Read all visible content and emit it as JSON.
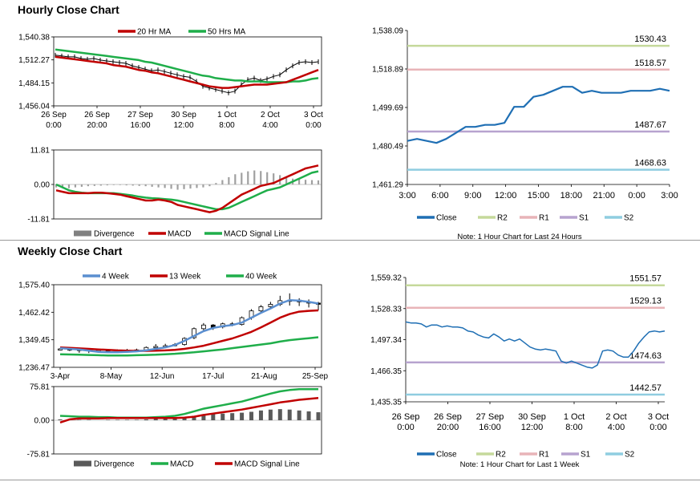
{
  "titles": {
    "hourly": "Hourly Close Chart",
    "weekly": "Weekly Close Chart"
  },
  "colors": {
    "ma_short": "#c00000",
    "ma_long": "#1fae4a",
    "ma_mid": "#5b8fd0",
    "close": "#1f6fb4",
    "r2": "#c5d99b",
    "r1": "#e8b4b8",
    "s1": "#b7a3cf",
    "s2": "#8fcde0",
    "divergence": "#a0a0a0",
    "weekly_divergence": "#5a5a5a"
  },
  "chart_data": [
    {
      "id": "hourly_price",
      "type": "line",
      "legend": [
        "20 Hr MA",
        "50 Hrs MA"
      ],
      "y_ticks": [
        "1,540.38",
        "1,512.27",
        "1,484.15",
        "1,456.04"
      ],
      "ylim": [
        1456.04,
        1540.38
      ],
      "x_ticks": [
        [
          "26 Sep",
          "0:00"
        ],
        [
          "26 Sep",
          "20:00"
        ],
        [
          "27 Sep",
          "16:00"
        ],
        [
          "30 Sep",
          "12:00"
        ],
        [
          "1 Oct",
          "8:00"
        ],
        [
          "2 Oct",
          "4:00"
        ],
        [
          "3 Oct",
          "0:00"
        ]
      ],
      "close": [
        1518,
        1517,
        1516,
        1516,
        1514,
        1513,
        1514,
        1512,
        1511,
        1510,
        1509,
        1508,
        1505,
        1503,
        1501,
        1499,
        1500,
        1498,
        1496,
        1494,
        1492,
        1491,
        1486,
        1480,
        1478,
        1476,
        1474,
        1472,
        1474,
        1482,
        1488,
        1490,
        1487,
        1489,
        1492,
        1494,
        1500,
        1505,
        1509,
        1510,
        1509,
        1510
      ],
      "ma20": [
        1516,
        1515,
        1514,
        1513,
        1512,
        1511,
        1510,
        1509,
        1508,
        1506,
        1505,
        1504,
        1502,
        1500,
        1499,
        1497,
        1496,
        1494,
        1492,
        1490,
        1488,
        1486,
        1484,
        1482,
        1480,
        1479,
        1478,
        1478,
        1479,
        1480,
        1481,
        1482,
        1482,
        1482,
        1483,
        1484,
        1485,
        1488,
        1491,
        1494,
        1497,
        1500
      ],
      "ma50": [
        1525,
        1524,
        1523,
        1522,
        1521,
        1520,
        1519,
        1518,
        1517,
        1516,
        1515,
        1514,
        1513,
        1512,
        1510,
        1509,
        1507,
        1505,
        1503,
        1501,
        1499,
        1497,
        1495,
        1493,
        1492,
        1490,
        1489,
        1488,
        1487,
        1487,
        1486,
        1486,
        1486,
        1485,
        1485,
        1485,
        1485,
        1486,
        1486,
        1487,
        1489,
        1490
      ]
    },
    {
      "id": "hourly_macd",
      "type": "bar+line",
      "legend": [
        "Divergence",
        "MACD",
        "MACD Signal Line"
      ],
      "y_ticks": [
        "11.81",
        "0.00",
        "-11.81"
      ],
      "ylim": [
        -11.81,
        11.81
      ],
      "divergence": [
        -1.0,
        -1.2,
        -1.3,
        -1.0,
        -0.8,
        -0.6,
        -0.5,
        -0.4,
        -0.3,
        -0.2,
        -0.2,
        -0.3,
        -0.4,
        -0.5,
        -0.6,
        -0.8,
        -1.0,
        -1.2,
        -1.5,
        -1.8,
        -1.6,
        -1.4,
        -1.2,
        -1.0,
        -0.6,
        0.5,
        1.5,
        2.5,
        3.5,
        4.0,
        4.5,
        4.8,
        4.6,
        4.2,
        3.8,
        3.2,
        2.6,
        2.0,
        1.8,
        1.6,
        1.5,
        1.4
      ],
      "macd": [
        -2.0,
        -2.5,
        -3.0,
        -3.0,
        -3.0,
        -3.0,
        -2.8,
        -2.8,
        -3.0,
        -3.2,
        -3.5,
        -4.0,
        -4.5,
        -5.0,
        -5.5,
        -5.5,
        -5.2,
        -5.5,
        -6.0,
        -7.0,
        -7.5,
        -8.0,
        -8.5,
        -9.0,
        -9.5,
        -9.0,
        -8.0,
        -6.5,
        -5.0,
        -3.5,
        -2.5,
        -1.5,
        -0.5,
        0.0,
        0.5,
        1.5,
        2.5,
        3.5,
        4.5,
        5.5,
        6.0,
        6.5
      ],
      "signal": [
        0.0,
        -1.0,
        -2.0,
        -2.5,
        -2.8,
        -3.0,
        -3.0,
        -3.0,
        -3.0,
        -3.0,
        -3.2,
        -3.5,
        -3.8,
        -4.2,
        -4.5,
        -4.7,
        -4.8,
        -5.0,
        -5.2,
        -5.5,
        -6.0,
        -6.5,
        -7.0,
        -7.5,
        -8.0,
        -8.5,
        -8.5,
        -8.0,
        -7.0,
        -6.0,
        -5.0,
        -4.0,
        -3.0,
        -2.0,
        -1.5,
        -1.0,
        0.0,
        1.0,
        2.0,
        3.0,
        4.0,
        4.5
      ]
    },
    {
      "id": "hourly_levels",
      "type": "line",
      "legend": [
        "Close",
        "R2",
        "R1",
        "S1",
        "S2"
      ],
      "note": "Note: 1 Hour Chart for Last 24 Hours",
      "y_ticks": [
        "1,538.09",
        "1,518.89",
        "1,499.69",
        "1,480.49",
        "1,461.29"
      ],
      "ylim": [
        1461.29,
        1538.09
      ],
      "x_ticks": [
        "3:00",
        "6:00",
        "9:00",
        "12:00",
        "15:00",
        "18:00",
        "21:00",
        "0:00",
        "3:00"
      ],
      "levels": {
        "r2": "1530.43",
        "r1": "1518.57",
        "s1": "1487.67",
        "s2": "1468.63"
      },
      "close": [
        1483,
        1484,
        1483,
        1482,
        1484,
        1487,
        1490,
        1490,
        1491,
        1491,
        1492,
        1500,
        1500,
        1505,
        1506,
        1508,
        1510,
        1510,
        1507,
        1508,
        1507,
        1507,
        1507,
        1508,
        1508,
        1508,
        1509,
        1508
      ]
    },
    {
      "id": "weekly_price",
      "type": "candlestick+line",
      "legend": [
        "4 Week",
        "13 Week",
        "40 Week"
      ],
      "y_ticks": [
        "1,575.40",
        "1,462.42",
        "1,349.45",
        "1,236.47"
      ],
      "ylim": [
        1236.47,
        1575.4
      ],
      "x_ticks": [
        "3-Apr",
        "8-May",
        "12-Jun",
        "17-Jul",
        "21-Aug",
        "25-Sep"
      ],
      "candles": [
        [
          1310,
          1312,
          1316,
          1305
        ],
        [
          1312,
          1310,
          1318,
          1303
        ],
        [
          1310,
          1309,
          1314,
          1296
        ],
        [
          1309,
          1305,
          1313,
          1295
        ],
        [
          1305,
          1306,
          1312,
          1298
        ],
        [
          1306,
          1303,
          1310,
          1298
        ],
        [
          1303,
          1306,
          1310,
          1299
        ],
        [
          1306,
          1305,
          1312,
          1300
        ],
        [
          1305,
          1308,
          1313,
          1301
        ],
        [
          1308,
          1318,
          1322,
          1305
        ],
        [
          1318,
          1322,
          1332,
          1312
        ],
        [
          1322,
          1325,
          1333,
          1318
        ],
        [
          1325,
          1330,
          1336,
          1322
        ],
        [
          1330,
          1355,
          1360,
          1325
        ],
        [
          1358,
          1395,
          1400,
          1352
        ],
        [
          1395,
          1410,
          1418,
          1388
        ],
        [
          1410,
          1400,
          1414,
          1390
        ],
        [
          1402,
          1415,
          1420,
          1396
        ],
        [
          1415,
          1412,
          1422,
          1405
        ],
        [
          1412,
          1440,
          1445,
          1408
        ],
        [
          1440,
          1468,
          1475,
          1432
        ],
        [
          1468,
          1485,
          1492,
          1462
        ],
        [
          1485,
          1495,
          1505,
          1478
        ],
        [
          1495,
          1510,
          1530,
          1488
        ],
        [
          1510,
          1512,
          1540,
          1490
        ],
        [
          1512,
          1505,
          1520,
          1488
        ],
        [
          1505,
          1500,
          1515,
          1482
        ],
        [
          1500,
          1495,
          1505,
          1470
        ]
      ],
      "ma4": [
        1315,
        1312,
        1310,
        1305,
        1300,
        1298,
        1298,
        1300,
        1302,
        1306,
        1312,
        1318,
        1328,
        1345,
        1365,
        1385,
        1398,
        1405,
        1410,
        1420,
        1440,
        1460,
        1478,
        1498,
        1512,
        1510,
        1505,
        1498
      ],
      "ma13": [
        1318,
        1316,
        1314,
        1312,
        1310,
        1308,
        1306,
        1305,
        1304,
        1304,
        1305,
        1306,
        1308,
        1312,
        1318,
        1325,
        1335,
        1345,
        1355,
        1368,
        1382,
        1400,
        1420,
        1440,
        1455,
        1465,
        1468,
        1470
      ],
      "ma40": [
        1290,
        1289,
        1288,
        1287,
        1286,
        1285,
        1285,
        1285,
        1286,
        1287,
        1288,
        1290,
        1292,
        1295,
        1298,
        1302,
        1306,
        1310,
        1315,
        1320,
        1325,
        1330,
        1335,
        1342,
        1348,
        1352,
        1356,
        1360
      ]
    },
    {
      "id": "weekly_macd",
      "type": "bar+line",
      "legend": [
        "Divergence",
        "MACD",
        "MACD Signal Line"
      ],
      "y_ticks": [
        "75.81",
        "0.00",
        "-75.81"
      ],
      "ylim": [
        -75.81,
        75.81
      ],
      "divergence": [
        2,
        2,
        1,
        1,
        0,
        1,
        1,
        1,
        1,
        2,
        3,
        4,
        5,
        7,
        10,
        12,
        14,
        15,
        16,
        17,
        19,
        22,
        24,
        25,
        24,
        22,
        20,
        18
      ],
      "macd": [
        10,
        9,
        8,
        8,
        7,
        7,
        6,
        6,
        6,
        6,
        7,
        8,
        10,
        14,
        20,
        26,
        30,
        34,
        38,
        42,
        48,
        54,
        60,
        65,
        68,
        70,
        70,
        70
      ],
      "signal": [
        -5,
        2,
        4,
        4,
        4,
        5,
        5,
        5,
        5,
        5,
        5,
        5,
        5,
        6,
        8,
        12,
        15,
        18,
        21,
        24,
        28,
        32,
        36,
        40,
        43,
        46,
        48,
        50
      ]
    },
    {
      "id": "weekly_levels",
      "type": "line",
      "legend": [
        "Close",
        "R2",
        "R1",
        "S1",
        "S2"
      ],
      "note": "Note: 1 Hour Chart for Last 1 Week",
      "y_ticks": [
        "1,559.32",
        "1,528.33",
        "1,497.34",
        "1,466.35",
        "1,435.35"
      ],
      "ylim": [
        1435.35,
        1559.32
      ],
      "x_ticks": [
        [
          "26 Sep",
          "0:00"
        ],
        [
          "26 Sep",
          "20:00"
        ],
        [
          "27 Sep",
          "16:00"
        ],
        [
          "30 Sep",
          "12:00"
        ],
        [
          "1 Oct",
          "8:00"
        ],
        [
          "2 Oct",
          "4:00"
        ],
        [
          "3 Oct",
          "0:00"
        ]
      ],
      "levels": {
        "r2": "1551.57",
        "r1": "1529.13",
        "s1": "1474.63",
        "s2": "1442.57"
      },
      "close": [
        1515,
        1514,
        1514,
        1513,
        1510,
        1512,
        1512,
        1510,
        1511,
        1510,
        1510,
        1509,
        1506,
        1505,
        1502,
        1500,
        1499,
        1503,
        1500,
        1496,
        1498,
        1496,
        1498,
        1494,
        1490,
        1488,
        1487,
        1488,
        1487,
        1486,
        1476,
        1474,
        1476,
        1474,
        1472,
        1470,
        1469,
        1472,
        1486,
        1487,
        1486,
        1482,
        1480,
        1480,
        1486,
        1494,
        1500,
        1505,
        1506,
        1505,
        1506
      ]
    }
  ]
}
